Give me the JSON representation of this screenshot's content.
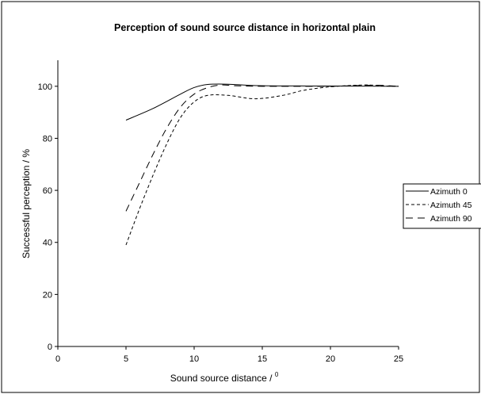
{
  "chart_data": {
    "type": "line",
    "title": "Perception of sound source distance in horizontal plain",
    "xlabel": "Sound source distance / ",
    "xlabel_superscript": "0",
    "ylabel": "Successful perception / %",
    "xlim": [
      0,
      25
    ],
    "ylim": [
      0,
      110
    ],
    "xticks": [
      0,
      5,
      10,
      15,
      20,
      25
    ],
    "yticks": [
      0,
      20,
      40,
      60,
      80,
      100
    ],
    "xtick_labels": [
      "0",
      "5",
      "10",
      "15",
      "20",
      "25"
    ],
    "ytick_labels": [
      "0",
      "20",
      "40",
      "60",
      "80",
      "100"
    ],
    "grid": false,
    "legend_position": "right",
    "series": [
      {
        "name": "Azimuth 0",
        "dash": "solid",
        "color": "#000000",
        "points": [
          [
            5,
            87
          ],
          [
            7,
            91.5
          ],
          [
            9,
            97
          ],
          [
            10,
            99.5
          ],
          [
            11,
            100.7
          ],
          [
            12.5,
            100.8
          ],
          [
            15,
            100.2
          ],
          [
            20,
            100.1
          ],
          [
            25,
            100
          ]
        ]
      },
      {
        "name": "Azimuth 45",
        "dash": "short",
        "color": "#000000",
        "points": [
          [
            5,
            39
          ],
          [
            6,
            53
          ],
          [
            7,
            66
          ],
          [
            8,
            78
          ],
          [
            9,
            88
          ],
          [
            10,
            94
          ],
          [
            11,
            96.5
          ],
          [
            12.5,
            96.5
          ],
          [
            14.5,
            95.2
          ],
          [
            16.5,
            96.5
          ],
          [
            18,
            98.4
          ],
          [
            20,
            99.8
          ],
          [
            22.5,
            100.5
          ],
          [
            24,
            100.1
          ],
          [
            25,
            100
          ]
        ]
      },
      {
        "name": "Azimuth 90",
        "dash": "long",
        "color": "#000000",
        "points": [
          [
            5,
            52
          ],
          [
            6,
            63
          ],
          [
            7,
            74
          ],
          [
            8,
            84
          ],
          [
            9,
            92
          ],
          [
            10,
            97
          ],
          [
            11,
            99.5
          ],
          [
            12,
            100.5
          ],
          [
            13,
            100.2
          ],
          [
            15,
            100
          ],
          [
            20,
            100
          ],
          [
            22,
            100.3
          ],
          [
            23.5,
            100.4
          ],
          [
            25,
            100
          ]
        ]
      }
    ]
  }
}
